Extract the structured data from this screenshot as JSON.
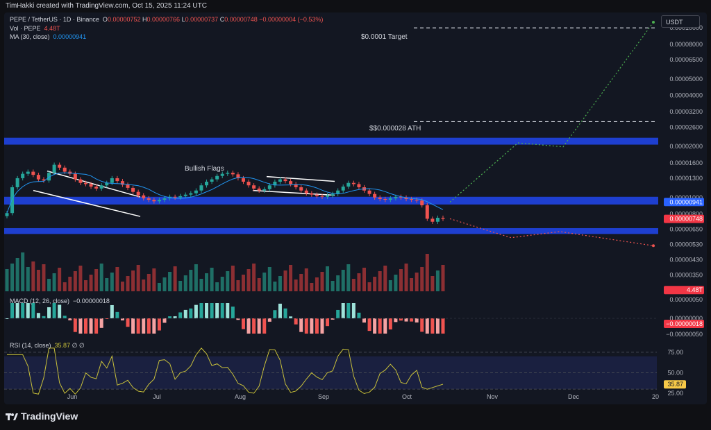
{
  "header": {
    "credit": "TimHakki created with TradingView.com, Oct 15, 2025 11:24 UTC"
  },
  "legend": {
    "symbol": "PEPE / TetherUS · 1D · Binance",
    "o_label": "O",
    "o": "0.00000752",
    "h_label": "H",
    "h": "0.00000766",
    "l_label": "L",
    "l": "0.00000737",
    "c_label": "C",
    "c": "0.00000748",
    "change": "−0.00000004 (−0.53%)",
    "vol_label": "Vol · PEPE",
    "vol": "4.48T",
    "ma_label": "MA (30, close)",
    "ma": "0.00000941"
  },
  "macd": {
    "label": "MACD (12, 26, close)",
    "value": "−0.00000018"
  },
  "rsi": {
    "label": "RSI (14, close)",
    "value": "35.87",
    "extra": "∅ ∅"
  },
  "currency_button": "USDT",
  "annotations": {
    "target": "$0.0001 Target",
    "ath": "$$0.000028 ATH",
    "flags": "Bullish Flags"
  },
  "branding": {
    "logo_text": "TradingView"
  },
  "colors": {
    "up": "#26a69a",
    "down": "#ef5350",
    "zone": "#1e3fd0",
    "ma": "#2196f3",
    "rsi": "#c9c13a",
    "bull_path": "#4caf50",
    "bear_path": "#ef5350"
  },
  "chart_data": {
    "type": "candlestick",
    "price_axis": {
      "scale": "log",
      "ticks": [
        "0.00010000",
        "0.00008000",
        "0.00006500",
        "0.00005000",
        "0.00004000",
        "0.00003200",
        "0.00002600",
        "0.00002000",
        "0.00001600",
        "0.00001300",
        "0.00001000",
        "0.00000941",
        "0.00000800",
        "0.00000748",
        "0.00000650",
        "0.00000530",
        "0.00000430",
        "0.00000350",
        "0.00000285"
      ],
      "ylim": [
        2.75e-06,
        0.000108
      ],
      "badges": [
        {
          "value": "0.00000941",
          "label": "0.00000941",
          "color": "#2962ff"
        },
        {
          "value": "0.00000748",
          "label": "0.00000748",
          "color": "#f23645"
        },
        {
          "value": "0.00000285",
          "label": "4.48T",
          "color": "#f23645"
        }
      ]
    },
    "time_axis": {
      "labels": [
        "Jun",
        "Jul",
        "Aug",
        "Sep",
        "Oct",
        "Nov",
        "Dec",
        "20"
      ]
    },
    "close_series": [
      8.1e-06,
      1.15e-05,
      1.3e-05,
      1.38e-05,
      1.42e-05,
      1.36e-05,
      1.28e-05,
      1.26e-05,
      1.4e-05,
      1.56e-05,
      1.5e-05,
      1.42e-05,
      1.38e-05,
      1.28e-05,
      1.22e-05,
      1.2e-05,
      1.16e-05,
      1.13e-05,
      1.18e-05,
      1.22e-05,
      1.3e-05,
      1.25e-05,
      1.19e-05,
      1.14e-05,
      1.08e-05,
      1.03e-05,
      9.9e-06,
      9.7e-06,
      9.5e-06,
      9.7e-06,
      9.9e-06,
      1.01e-05,
      1e-05,
      1.02e-05,
      1.04e-05,
      1.06e-05,
      1.1e-05,
      1.18e-05,
      1.24e-05,
      1.28e-05,
      1.34e-05,
      1.38e-05,
      1.4e-05,
      1.37e-05,
      1.3e-05,
      1.24e-05,
      1.18e-05,
      1.13e-05,
      1.1e-05,
      1.12e-05,
      1.18e-05,
      1.24e-05,
      1.28e-05,
      1.25e-05,
      1.2e-05,
      1.15e-05,
      1.1e-05,
      1.06e-05,
      1.04e-05,
      1.02e-05,
      1.01e-05,
      1.03e-05,
      1.05e-05,
      1.1e-05,
      1.16e-05,
      1.22e-05,
      1.2e-05,
      1.15e-05,
      1.1e-05,
      1.05e-05,
      1e-05,
      9.8e-06,
      9.7e-06,
      9.9e-06,
      1.01e-05,
      1e-05,
      9.8e-06,
      9.7e-06,
      9.6e-06,
      9e-06,
      7.5e-06,
      7.2e-06,
      7.6e-06,
      7.5e-06
    ],
    "ma30": {
      "name": "MA (30, close)",
      "last": 9.41e-06
    },
    "zones": [
      {
        "from": 2.05e-05,
        "to": 2.25e-05
      },
      {
        "from": 9.1e-06,
        "to": 1.01e-05
      },
      {
        "from": 6.1e-06,
        "to": 6.6e-06
      }
    ],
    "levels": [
      {
        "value": 0.0001,
        "label": "$0.0001 Target"
      },
      {
        "value": 2.8e-05,
        "label": "$$0.000028 ATH"
      }
    ],
    "macd": {
      "ylim": [
        -5e-07,
        5e-07
      ],
      "ticks": [
        "0.00000050",
        "0.00000000",
        "−0.00000018",
        "−0.00000050"
      ],
      "last": -1.8e-07
    },
    "rsi": {
      "ylim": [
        20,
        85
      ],
      "ticks": [
        "75.00",
        "50.00",
        "35.87",
        "25.00"
      ],
      "band": [
        30,
        70
      ],
      "last": 35.87
    },
    "grid": false
  }
}
